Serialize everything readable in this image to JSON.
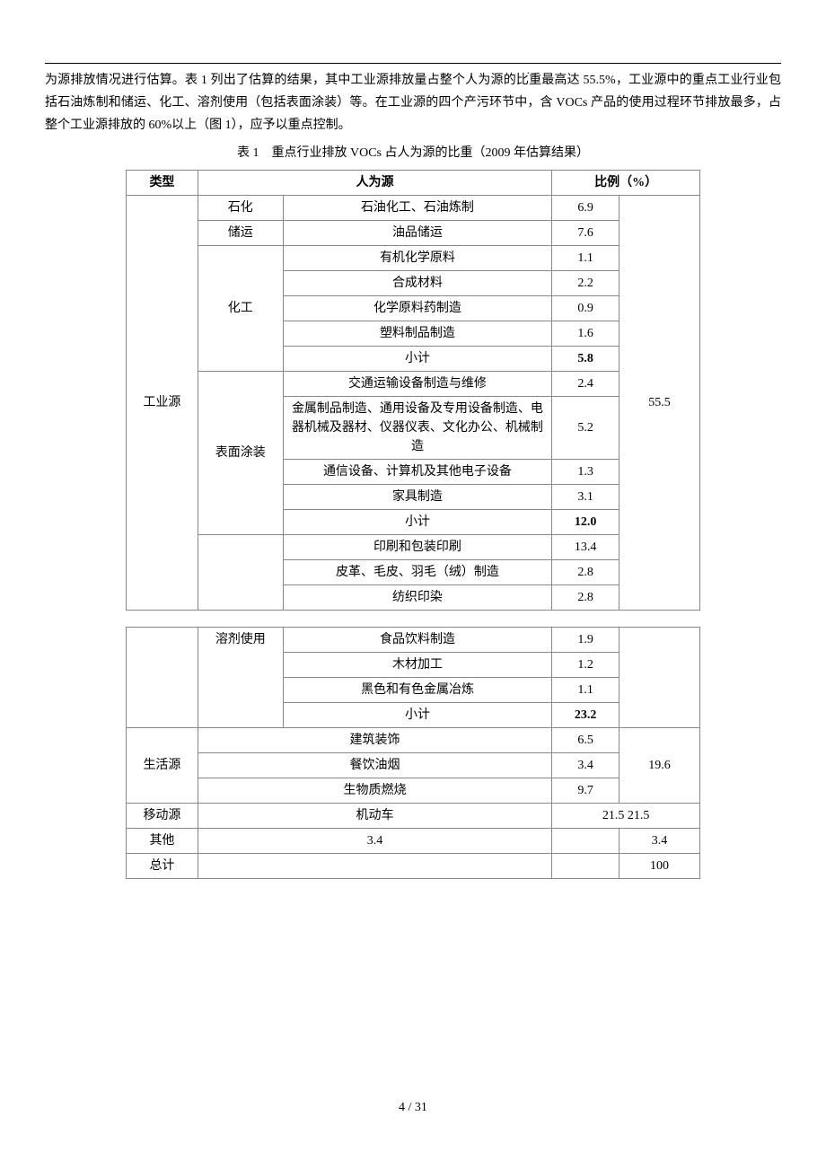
{
  "page_dot": ".",
  "paragraph": "为源排放情况进行估算。表 1 列出了估算的结果，其中工业源排放量占整个人为源的比重最高达 55.5%，工业源中的重点工业行业包括石油炼制和储运、化工、溶剂使用（包括表面涂装）等。在工业源的四个产污环节中，含 VOCs 产品的使用过程环节排放最多，占整个工业源排放的 60%以上（图 1），应予以重点控制。",
  "caption": "表 1　重点行业排放 VOCs 占人为源的比重（2009 年估算结果）",
  "headers": {
    "type": "类型",
    "source": "人为源",
    "ratio": "比例（%）"
  },
  "industrial": {
    "label": "工业源",
    "total": "55.5",
    "petro": {
      "sub": "石化",
      "item": "石油化工、石油炼制",
      "pct": "6.9"
    },
    "storage": {
      "sub": "储运",
      "item": "油品储运",
      "pct": "7.6"
    },
    "chem": {
      "sub": "化工",
      "rows": [
        {
          "item": "有机化学原料",
          "pct": "1.1"
        },
        {
          "item": "合成材料",
          "pct": "2.2"
        },
        {
          "item": "化学原料药制造",
          "pct": "0.9"
        },
        {
          "item": "塑料制品制造",
          "pct": "1.6"
        }
      ],
      "subtotal": {
        "item": "小计",
        "pct": "5.8"
      }
    },
    "paint": {
      "sub": "表面涂装",
      "rows": [
        {
          "item": "交通运输设备制造与维修",
          "pct": "2.4"
        },
        {
          "item": "金属制品制造、通用设备及专用设备制造、电器机械及器材、仪器仪表、文化办公、机械制造",
          "pct": "5.2"
        },
        {
          "item": "通信设备、计算机及其他电子设备",
          "pct": "1.3"
        },
        {
          "item": "家具制造",
          "pct": "3.1"
        }
      ],
      "subtotal": {
        "item": "小计",
        "pct": "12.0"
      }
    },
    "solvent_top": [
      {
        "item": "印刷和包装印刷",
        "pct": "13.4"
      },
      {
        "item": "皮革、毛皮、羽毛（绒）制造",
        "pct": "2.8"
      },
      {
        "item": "纺织印染",
        "pct": "2.8"
      }
    ],
    "solvent": {
      "sub": "溶剂使用",
      "rows": [
        {
          "item": "食品饮料制造",
          "pct": "1.9"
        },
        {
          "item": "木材加工",
          "pct": "1.2"
        },
        {
          "item": "黑色和有色金属冶炼",
          "pct": "1.1"
        }
      ],
      "subtotal": {
        "item": "小计",
        "pct": "23.2"
      }
    }
  },
  "living": {
    "label": "生活源",
    "total": "19.6",
    "rows": [
      {
        "item": "建筑装饰",
        "pct": "6.5"
      },
      {
        "item": "餐饮油烟",
        "pct": "3.4"
      },
      {
        "item": "生物质燃烧",
        "pct": "9.7"
      }
    ]
  },
  "mobile": {
    "label": "移动源",
    "item": "机动车",
    "pct": "21.5 21.5"
  },
  "other": {
    "label": "其他",
    "item": "3.4",
    "total": "3.4"
  },
  "grand": {
    "label": "总计",
    "total": "100"
  },
  "footer": "4 / 31"
}
